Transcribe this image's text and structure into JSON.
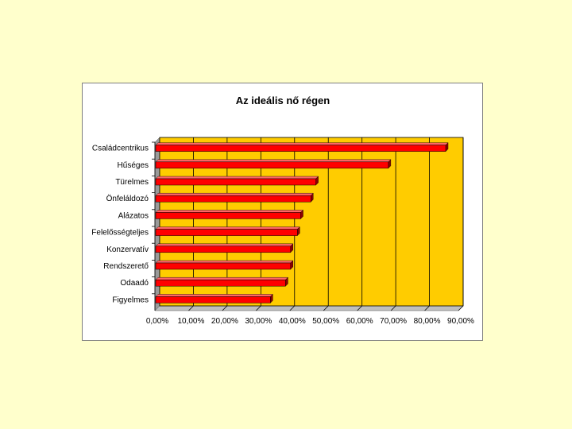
{
  "chart_data": {
    "type": "bar",
    "orientation": "horizontal",
    "title": "Az ideális nő régen",
    "categories": [
      "Családcentrikus",
      "Hűséges",
      "Türelmes",
      "Önfeláldozó",
      "Alázatos",
      "Felelősségteljes",
      "Konzervatív",
      "Rendszerető",
      "Odaadó",
      "Figyelmes"
    ],
    "values": [
      86,
      69,
      47.5,
      46,
      43,
      42,
      40,
      40,
      38.5,
      34
    ],
    "x_ticks": [
      "0,00%",
      "10,00%",
      "20,00%",
      "30,00%",
      "40,00%",
      "50,00%",
      "60,00%",
      "70,00%",
      "80,00%",
      "90,00%"
    ],
    "xlim": [
      0,
      90
    ],
    "grid": true,
    "legend": "none",
    "colors": {
      "plot_background": "#FFCC00",
      "bar_fill": "#FF0000",
      "bar_dark": "#8B0000",
      "gridline": "#000000",
      "wall": "#9A9A9A"
    }
  }
}
